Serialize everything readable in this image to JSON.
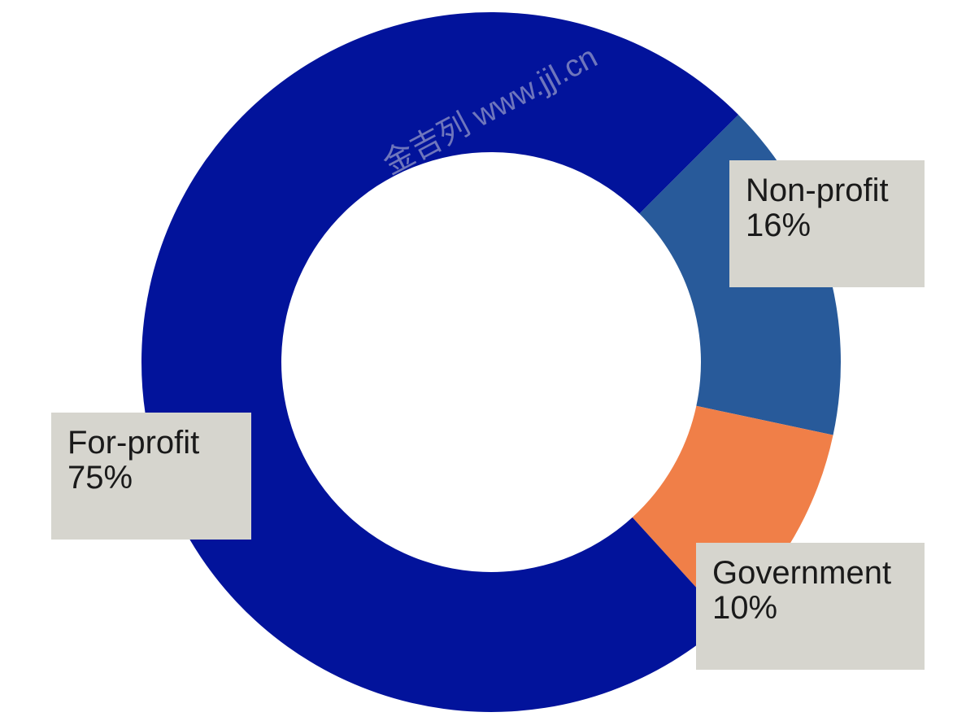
{
  "chart_data": {
    "type": "pie",
    "categories": [
      "Non-profit",
      "Government",
      "For-profit"
    ],
    "values": [
      16,
      10,
      75
    ],
    "value_labels": [
      "16%",
      "10%",
      "75%"
    ],
    "colors": [
      "#285a9a",
      "#f07f48",
      "#02139b"
    ],
    "label_box_color": "#d6d5ce",
    "watermark": "金吉列 www.jjl.cn"
  }
}
